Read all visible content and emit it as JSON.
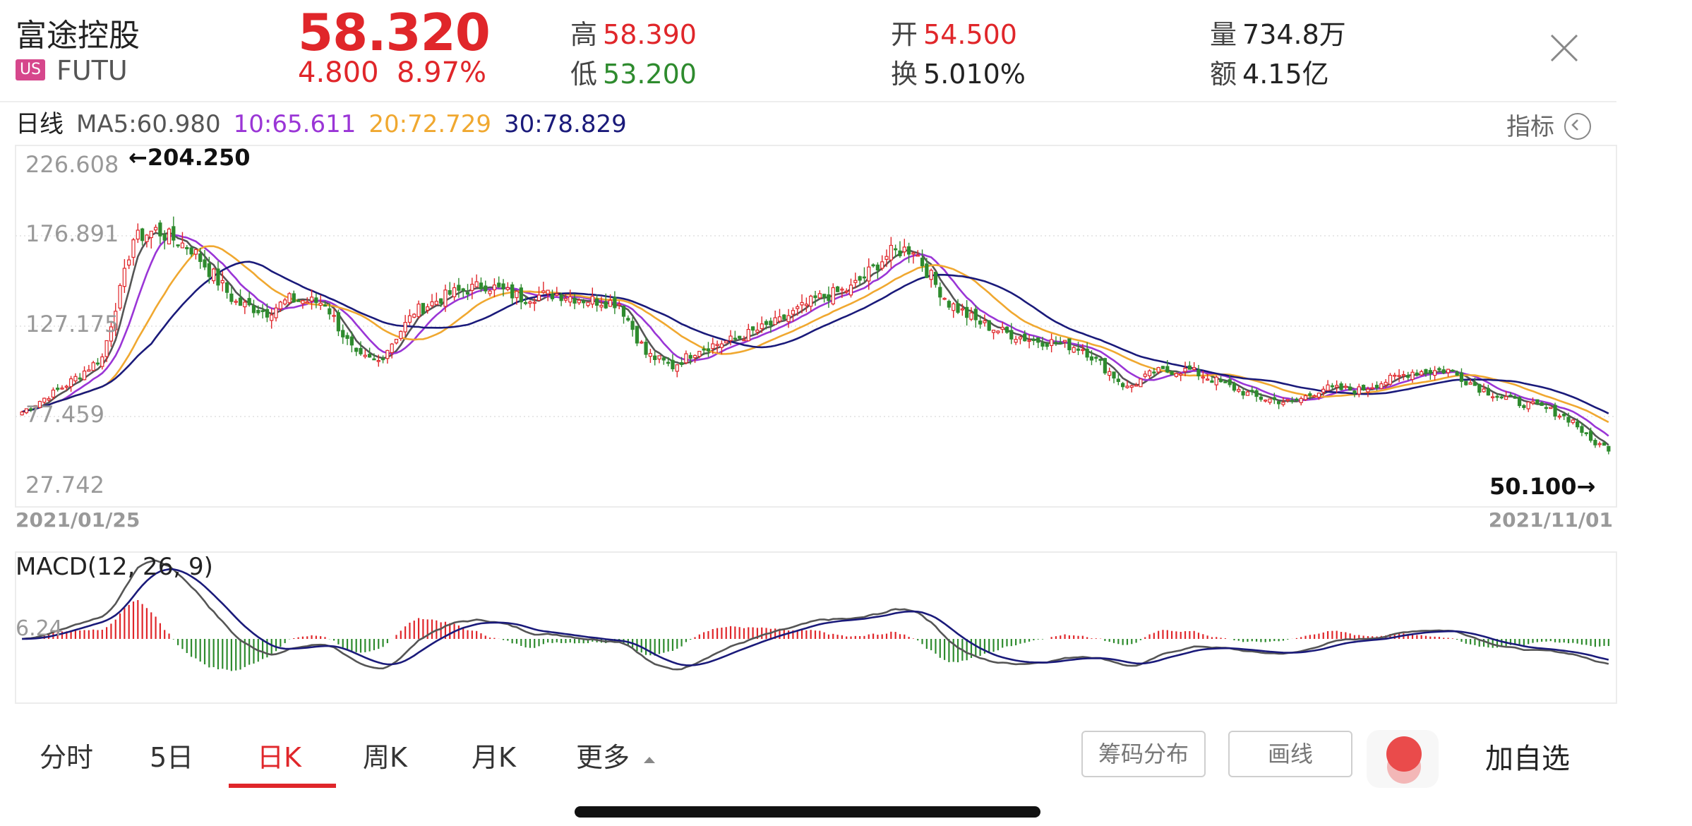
{
  "header": {
    "stock_name": "富途控股",
    "market": "US",
    "ticker": "FUTU",
    "price": "58.320",
    "change": "4.800",
    "change_pct": "8.97%",
    "stats": {
      "high_label": "高",
      "high": "58.390",
      "low_label": "低",
      "low": "53.200",
      "open_label": "开",
      "open": "54.500",
      "turnover_label": "换",
      "turnover": "5.010%",
      "volume_label": "量",
      "volume": "734.8万",
      "amount_label": "额",
      "amount": "4.15亿"
    }
  },
  "ma_row": {
    "period": "日线",
    "ma5": "MA5:60.980",
    "ma10": "10:65.611",
    "ma20": "20:72.729",
    "ma30": "30:78.829",
    "indicator_label": "指标"
  },
  "colors": {
    "up": "#e0262a",
    "down": "#2e8b2e",
    "ma5": "#555555",
    "ma10": "#9a35d6",
    "ma20": "#f0a830",
    "ma30": "#1a1a7a"
  },
  "chart_data": [
    {
      "type": "candlestick",
      "y_ticks": [
        "226.608",
        "176.891",
        "127.175",
        "77.459",
        "27.742"
      ],
      "ylim": [
        27.742,
        226.608
      ],
      "x_labels": [
        "2021/01/25",
        "2021/11/01"
      ],
      "max_annotation": "←204.250",
      "min_annotation": "50.100→",
      "anchors": [
        [
          0,
          80
        ],
        [
          10,
          95
        ],
        [
          18,
          110
        ],
        [
          25,
          175
        ],
        [
          30,
          180
        ],
        [
          38,
          170
        ],
        [
          48,
          140
        ],
        [
          55,
          135
        ],
        [
          60,
          142
        ],
        [
          68,
          140
        ],
        [
          75,
          110
        ],
        [
          80,
          108
        ],
        [
          88,
          135
        ],
        [
          96,
          145
        ],
        [
          104,
          150
        ],
        [
          112,
          143
        ],
        [
          120,
          145
        ],
        [
          126,
          142
        ],
        [
          134,
          140
        ],
        [
          140,
          112
        ],
        [
          146,
          105
        ],
        [
          152,
          115
        ],
        [
          160,
          120
        ],
        [
          170,
          130
        ],
        [
          178,
          142
        ],
        [
          186,
          148
        ],
        [
          195,
          168
        ],
        [
          200,
          170
        ],
        [
          205,
          150
        ],
        [
          208,
          140
        ],
        [
          214,
          130
        ],
        [
          220,
          124
        ],
        [
          226,
          120
        ],
        [
          232,
          118
        ],
        [
          238,
          115
        ],
        [
          244,
          102
        ],
        [
          248,
          93
        ],
        [
          254,
          102
        ],
        [
          262,
          103
        ],
        [
          270,
          95
        ],
        [
          277,
          88
        ],
        [
          285,
          85
        ],
        [
          292,
          93
        ],
        [
          300,
          92
        ],
        [
          306,
          97
        ],
        [
          312,
          102
        ],
        [
          320,
          103
        ],
        [
          328,
          92
        ],
        [
          336,
          85
        ],
        [
          342,
          82
        ],
        [
          348,
          75
        ],
        [
          352,
          64
        ],
        [
          356,
          60
        ]
      ],
      "series": [
        {
          "name": "MA5",
          "period": 5
        },
        {
          "name": "MA10",
          "period": 10
        },
        {
          "name": "MA20",
          "period": 20
        },
        {
          "name": "MA30",
          "period": 30
        }
      ]
    },
    {
      "type": "macd",
      "title": "MACD(12, 26, 9)",
      "y_tick": "6.24"
    }
  ],
  "tabs": [
    "分时",
    "5日",
    "日K",
    "周K",
    "月K",
    "更多"
  ],
  "tools": {
    "chip_distribution": "筹码分布",
    "draw_line": "画线",
    "add_watchlist": "加自选"
  }
}
